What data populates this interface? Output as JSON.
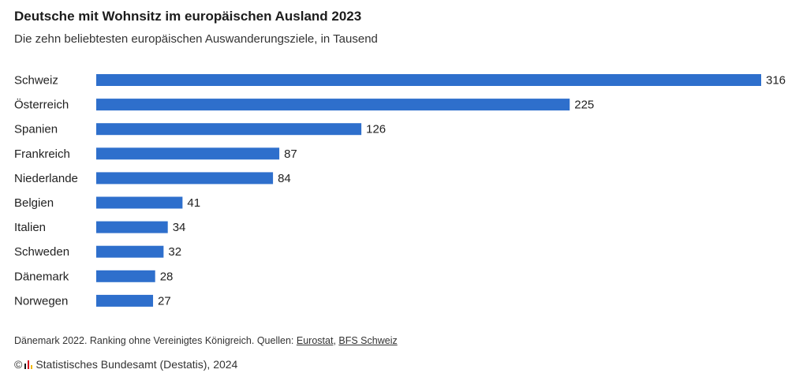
{
  "header": {
    "title": "Deutsche mit Wohnsitz im europäischen Ausland 2023",
    "subtitle": "Die zehn beliebtesten europäischen Auswanderungsziele, in Tausend"
  },
  "chart_data": {
    "type": "bar",
    "orientation": "horizontal",
    "title": "Deutsche mit Wohnsitz im europäischen Ausland 2023",
    "subtitle": "Die zehn beliebtesten europäischen Auswanderungsziele, in Tausend",
    "categories": [
      "Schweiz",
      "Österreich",
      "Spanien",
      "Frankreich",
      "Niederlande",
      "Belgien",
      "Italien",
      "Schweden",
      "Dänemark",
      "Norwegen"
    ],
    "values": [
      316,
      225,
      126,
      87,
      84,
      41,
      34,
      32,
      28,
      27
    ],
    "xlim": [
      0,
      316
    ],
    "grid": false,
    "legend": "none",
    "bar_color": "#2e6fcc"
  },
  "footer": {
    "note_text": "Dänemark 2022. Ranking ohne Vereinigtes Königreich. Quellen: ",
    "source_1": "Eurostat",
    "separator": ", ",
    "source_2": "BFS Schweiz",
    "copyright_symbol": "©",
    "copyright_text": "Statistisches Bundesamt (Destatis), 2024",
    "logo_colors": [
      "#1a1a1a",
      "#d6001c",
      "#f2b705"
    ]
  }
}
